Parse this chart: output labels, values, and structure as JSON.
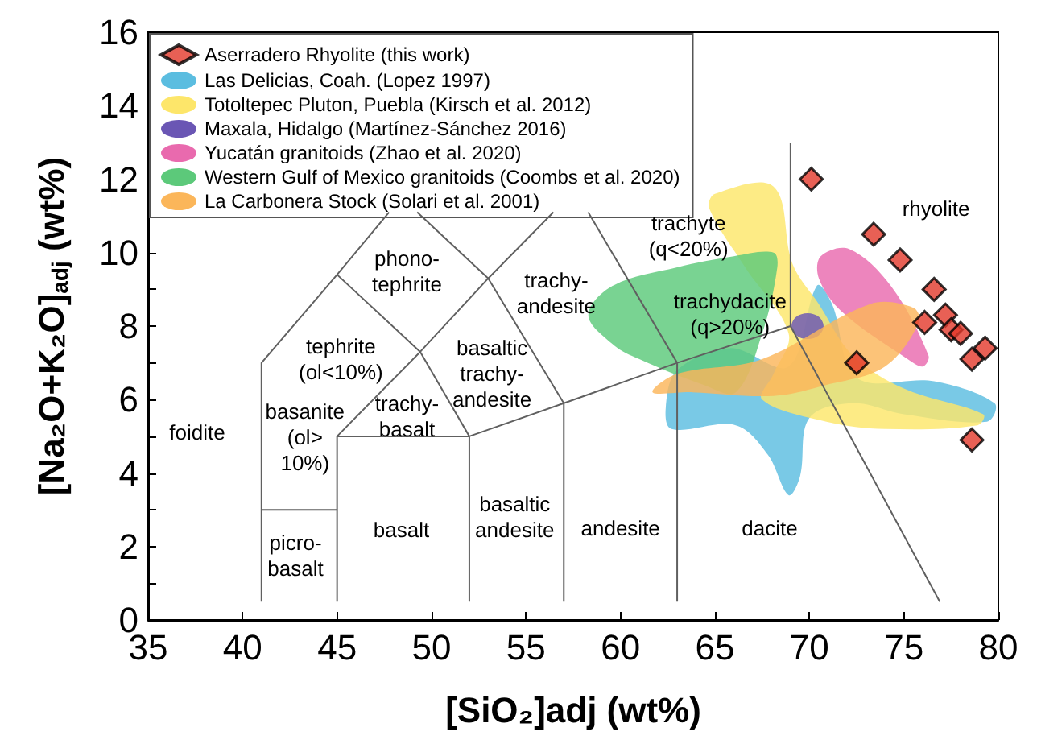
{
  "chart_data": {
    "type": "scatter",
    "xlabel": "[SiO₂]adj (wt%)",
    "ylabel": "[Na₂O+K₂O]$_{adj}$ (wt%)",
    "xlim": [
      35,
      80
    ],
    "xticks": [
      35,
      40,
      45,
      50,
      55,
      60,
      65,
      70,
      75,
      80
    ],
    "ylim": [
      0,
      16
    ],
    "yticks": [
      0,
      {
        "value": 1,
        "label": null
      },
      2,
      {
        "value": 3,
        "label": null
      },
      4,
      {
        "value": 5,
        "label": null
      },
      6,
      {
        "value": 7,
        "label": null
      },
      8,
      {
        "value": 9,
        "label": null
      },
      10,
      {
        "value": 11,
        "label": null
      },
      12,
      {
        "value": 13,
        "label": null
      },
      14,
      {
        "value": 15,
        "label": null
      },
      16
    ],
    "legend": "top left",
    "series": [
      {
        "name": "Aserradero Rhyolite (this work)",
        "marker": "diamond",
        "color": "#e2382a",
        "x": [
          70.1,
          73.4,
          74.8,
          76.6,
          77.2,
          76.1,
          77.5,
          78.0,
          79.3,
          78.6,
          72.5,
          78.6
        ],
        "values": [
          12.0,
          10.5,
          9.8,
          9.0,
          8.3,
          8.1,
          7.9,
          7.8,
          7.4,
          7.1,
          7.0,
          4.9
        ]
      },
      {
        "name": "Las Delicias, Coah. (Lopez 1997)",
        "type": "area",
        "color": "#5bbde0",
        "x": [
          62.4,
          63,
          65.8,
          68.9,
          70.4,
          71.2,
          72.5,
          76.6,
          79.8,
          79.4,
          75,
          72.3,
          70,
          69.5,
          68.9,
          67.8,
          66.1,
          62.7
        ],
        "values": [
          5.8,
          6.8,
          7.4,
          6.9,
          9.1,
          8.6,
          6.6,
          6.5,
          5.9,
          5.4,
          5.6,
          5.9,
          5.5,
          3.9,
          3.4,
          4.5,
          5.3,
          5.2
        ]
      },
      {
        "name": "Totoltepec Pluton, Puebla (Kirsch et al. 2012)",
        "type": "area",
        "color": "#fde66a",
        "x": [
          64.7,
          65.0,
          68.1,
          69.1,
          70.5,
          72.3,
          75,
          79.2,
          78.9,
          74,
          70.9,
          67.5,
          68.1,
          68.9,
          66.6
        ],
        "values": [
          11.2,
          11.6,
          11.8,
          9.7,
          8.6,
          7.2,
          6.3,
          5.6,
          5.3,
          5.2,
          5.4,
          6.0,
          6.7,
          7.8,
          9.6
        ]
      },
      {
        "name": "Maxala, Hidalgo (Martínez-Sánchez 2016)",
        "type": "area",
        "color": "#6a56b4",
        "x": [
          69.05,
          69.3,
          69.9,
          70.5,
          70.75,
          70.5,
          69.9,
          69.3
        ],
        "values": [
          8.0,
          8.25,
          8.35,
          8.25,
          8.0,
          7.75,
          7.65,
          7.75
        ]
      },
      {
        "name": "Yucatán granitoids (Zhao et al. 2020)",
        "type": "area",
        "color": "#e96aae",
        "x": [
          70.6,
          72.1,
          74.3,
          76.3,
          76.0,
          75.2,
          71.7,
          70.5
        ],
        "values": [
          9.9,
          10.1,
          9.1,
          7.2,
          6.9,
          7.1,
          8.4,
          9.3
        ]
      },
      {
        "name": "Western Gulf of Mexico granitoids (Coombs et al. 2020)",
        "type": "area",
        "color": "#5cc97a",
        "x": [
          58.3,
          59.6,
          63,
          66,
          68.1,
          68.3,
          67.5,
          66.1,
          64.4,
          61,
          59.6
        ],
        "values": [
          8.3,
          9.1,
          9.6,
          9.9,
          10.0,
          9.6,
          7.8,
          6.2,
          6.4,
          7.1,
          7.5
        ]
      },
      {
        "name": "La Carbonera Stock (Solari et al. 2001)",
        "type": "area",
        "color": "#fbb65a",
        "x": [
          61.7,
          63.0,
          67.5,
          73.2,
          75.5,
          75.8,
          74.0,
          70.9,
          68.1,
          63.8
        ],
        "values": [
          6.2,
          6.7,
          7.1,
          8.6,
          8.5,
          8.1,
          6.9,
          6.4,
          6.1,
          6.2
        ]
      },
      {
        "type": "line",
        "color": "#606060",
        "marker": "none",
        "x": [
          41,
          41,
          45,
          47.75,
          null,
          41,
          45,
          null,
          45,
          45,
          52,
          57,
          63,
          69,
          69,
          null,
          45,
          49.4,
          53,
          56.45,
          null,
          52,
          52,
          null,
          57,
          57,
          null,
          63,
          63,
          null,
          52,
          49.4,
          45,
          null,
          57,
          53,
          49.24,
          null,
          63,
          58.29,
          null,
          69,
          76.9
        ],
        "values": [
          0.5,
          7,
          9.4,
          11.1,
          null,
          3,
          3,
          null,
          0.5,
          5,
          5,
          5.9,
          7,
          8,
          13,
          null,
          5,
          7.3,
          9.3,
          11.1,
          null,
          0.5,
          5,
          null,
          0.5,
          5.9,
          null,
          0.5,
          7,
          null,
          5,
          7.3,
          9.4,
          null,
          5.9,
          9.3,
          11.1,
          null,
          7,
          11.1,
          null,
          8,
          0.5
        ]
      }
    ],
    "annotations": [
      "foidite",
      "picro-\nbasalt",
      "basalt",
      "basaltic\nandesite",
      "andesite",
      "dacite",
      "rhyolite",
      "trachyte\n(q<20%)",
      "trachydacite\n(q>20%)",
      "trachy-\nandesite",
      "basaltic\ntrachy-\nandesite",
      "trachy-\nbasalt",
      "basanite\n(ol>\n10%)",
      "tephrite\n(ol<10%)",
      "phono-\ntephrite"
    ]
  }
}
